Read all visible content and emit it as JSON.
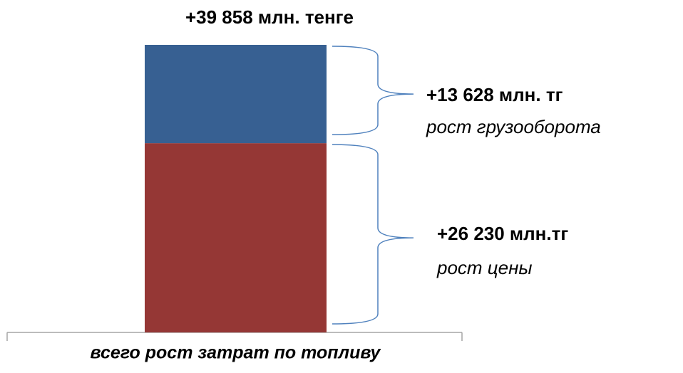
{
  "chart_data": {
    "type": "stacked_bar",
    "categories": [
      "всего рост затрат по топливу"
    ],
    "total": 39858,
    "total_label": "+39 858 млн. тенге",
    "series": [
      {
        "name": "рост цены",
        "color": "#953735",
        "values": [
          26230
        ],
        "value_labels": [
          "+26 230 млн.тг"
        ]
      },
      {
        "name": "рост грузооборота",
        "color": "#376092",
        "values": [
          13628
        ],
        "value_labels": [
          "+13 628 млн. тг"
        ]
      }
    ]
  }
}
